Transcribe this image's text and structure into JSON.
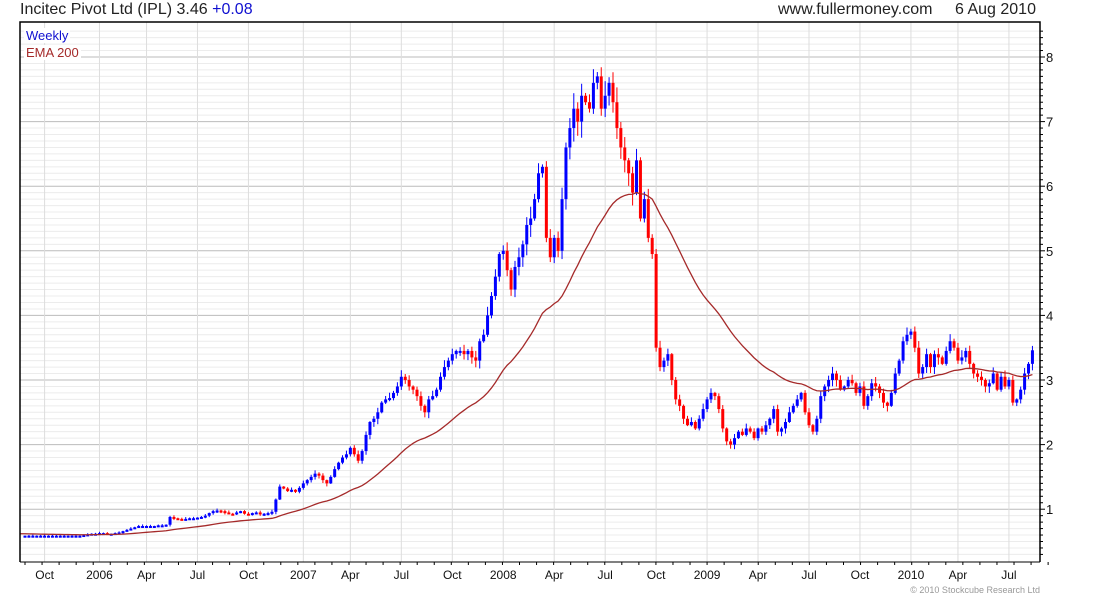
{
  "header": {
    "title": "Incitec Pivot Ltd (IPL) 3.46",
    "change": "+0.08",
    "site": "www.fullermoney.com",
    "date": "6 Aug 2010"
  },
  "copyright": "© 2010 Stockcube Research Ltd",
  "colors": {
    "up": "#0000ff",
    "down": "#ff0000",
    "ema": "#a52a2a"
  },
  "chart_data": {
    "type": "candlestick",
    "title": "Incitec Pivot Ltd (IPL) 3.46 +0.08",
    "legend": [
      "Weekly",
      "EMA 200"
    ],
    "legend_placement": "top-left",
    "ylim": [
      0.2,
      8.5
    ],
    "y_ticks": [
      1,
      2,
      3,
      4,
      5,
      6,
      7,
      8
    ],
    "x_ticks": [
      {
        "label": "Oct",
        "week": 5
      },
      {
        "label": "2006",
        "week": 19
      },
      {
        "label": "Apr",
        "week": 31
      },
      {
        "label": "Jul",
        "week": 44
      },
      {
        "label": "Oct",
        "week": 57
      },
      {
        "label": "2007",
        "week": 71
      },
      {
        "label": "Apr",
        "week": 83
      },
      {
        "label": "Jul",
        "week": 96
      },
      {
        "label": "Oct",
        "week": 109
      },
      {
        "label": "2008",
        "week": 122
      },
      {
        "label": "Apr",
        "week": 135
      },
      {
        "label": "Jul",
        "week": 148
      },
      {
        "label": "Oct",
        "week": 161
      },
      {
        "label": "2009",
        "week": 174
      },
      {
        "label": "Apr",
        "week": 187
      },
      {
        "label": "Jul",
        "week": 200
      },
      {
        "label": "Oct",
        "week": 213
      },
      {
        "label": "2010",
        "week": 226
      },
      {
        "label": "Apr",
        "week": 238
      },
      {
        "label": "Jul",
        "week": 251
      }
    ],
    "ema_period_weeks": 40,
    "weekly_close": [
      0.59,
      0.59,
      0.59,
      0.59,
      0.59,
      0.59,
      0.59,
      0.59,
      0.59,
      0.59,
      0.59,
      0.59,
      0.59,
      0.59,
      0.59,
      0.6,
      0.61,
      0.62,
      0.62,
      0.63,
      0.63,
      0.62,
      0.62,
      0.63,
      0.64,
      0.66,
      0.68,
      0.7,
      0.72,
      0.74,
      0.74,
      0.74,
      0.74,
      0.74,
      0.75,
      0.75,
      0.76,
      0.88,
      0.86,
      0.85,
      0.84,
      0.85,
      0.86,
      0.86,
      0.87,
      0.88,
      0.9,
      0.94,
      0.97,
      0.98,
      0.97,
      0.95,
      0.93,
      0.92,
      0.95,
      0.97,
      0.93,
      0.92,
      0.94,
      0.95,
      0.92,
      0.93,
      0.94,
      0.96,
      1.15,
      1.35,
      1.32,
      1.28,
      1.3,
      1.27,
      1.33,
      1.4,
      1.45,
      1.5,
      1.55,
      1.52,
      1.45,
      1.4,
      1.5,
      1.62,
      1.72,
      1.8,
      1.85,
      1.95,
      1.85,
      1.75,
      1.9,
      2.15,
      2.35,
      2.4,
      2.5,
      2.65,
      2.7,
      2.72,
      2.8,
      2.9,
      3.05,
      3.0,
      2.9,
      2.85,
      2.75,
      2.6,
      2.5,
      2.7,
      2.75,
      2.85,
      3.05,
      3.2,
      3.3,
      3.4,
      3.45,
      3.45,
      3.4,
      3.45,
      3.35,
      3.3,
      3.6,
      3.7,
      4.0,
      4.3,
      4.6,
      4.95,
      5.0,
      4.7,
      4.4,
      4.75,
      4.9,
      5.1,
      5.4,
      5.5,
      5.8,
      6.2,
      6.3,
      5.2,
      4.9,
      5.2,
      5.0,
      5.8,
      6.6,
      6.9,
      7.2,
      7.0,
      7.4,
      7.3,
      7.2,
      7.6,
      7.7,
      7.2,
      7.4,
      7.6,
      7.3,
      6.9,
      6.6,
      6.4,
      6.2,
      5.9,
      6.4,
      5.5,
      5.8,
      5.2,
      4.95,
      3.5,
      3.2,
      3.3,
      3.4,
      3.0,
      2.7,
      2.6,
      2.4,
      2.3,
      2.35,
      2.25,
      2.4,
      2.55,
      2.7,
      2.8,
      2.75,
      2.55,
      2.25,
      2.05,
      2.0,
      2.1,
      2.2,
      2.15,
      2.25,
      2.2,
      2.1,
      2.25,
      2.2,
      2.3,
      2.4,
      2.55,
      2.2,
      2.25,
      2.35,
      2.5,
      2.6,
      2.7,
      2.8,
      2.5,
      2.3,
      2.2,
      2.4,
      2.75,
      2.9,
      3.0,
      3.1,
      3.0,
      2.85,
      2.9,
      3.0,
      2.95,
      2.8,
      2.9,
      2.6,
      2.75,
      2.95,
      2.9,
      2.8,
      2.65,
      2.6,
      2.8,
      3.1,
      3.3,
      3.6,
      3.7,
      3.75,
      3.5,
      3.1,
      3.2,
      3.4,
      3.2,
      3.4,
      3.35,
      3.25,
      3.45,
      3.6,
      3.5,
      3.3,
      3.35,
      3.45,
      3.25,
      3.1,
      3.05,
      3.0,
      2.9,
      2.95,
      3.1,
      2.85,
      3.05,
      2.9,
      3.0,
      2.65,
      2.7,
      2.85,
      3.1,
      3.25,
      3.46
    ]
  }
}
